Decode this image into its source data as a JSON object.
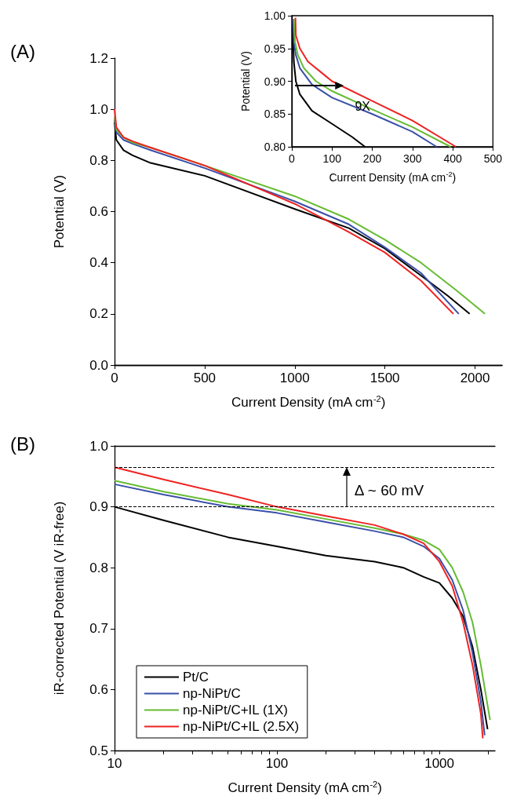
{
  "chart_data": [
    {
      "type": "line",
      "title": "(A)",
      "xlabel": "Current Density (mA cm$^{-2}$)",
      "ylabel": "Potential (V)",
      "xlim": [
        0,
        2150
      ],
      "xticks": [
        0,
        500,
        1000,
        1500,
        2000
      ],
      "ylim": [
        0,
        1.2
      ],
      "yticks": [
        {
          "value": 0,
          "label": "0.0"
        },
        0.2,
        0.4,
        0.6,
        0.8,
        {
          "value": 1,
          "label": "1.0"
        },
        1.2
      ],
      "series": [
        {
          "color": "#000000",
          "x": [
            0,
            10,
            50,
            100,
            200,
            500,
            1000,
            1300,
            1500,
            1700,
            1850,
            1970
          ],
          "values": [
            0.95,
            0.88,
            0.84,
            0.82,
            0.79,
            0.74,
            0.61,
            0.535,
            0.455,
            0.35,
            0.27,
            0.2
          ]
        },
        {
          "color": "#3a4fa8",
          "x": [
            0,
            10,
            50,
            100,
            200,
            500,
            1000,
            1300,
            1500,
            1700,
            1910
          ],
          "values": [
            0.96,
            0.91,
            0.88,
            0.865,
            0.84,
            0.77,
            0.64,
            0.55,
            0.46,
            0.36,
            0.2
          ]
        },
        {
          "color": "#66bb33",
          "x": [
            0,
            10,
            50,
            100,
            200,
            500,
            1000,
            1300,
            1500,
            1700,
            1900,
            2055
          ],
          "values": [
            0.97,
            0.92,
            0.89,
            0.87,
            0.85,
            0.78,
            0.66,
            0.57,
            0.49,
            0.4,
            0.29,
            0.2
          ]
        },
        {
          "color": "#ee2222",
          "x": [
            0,
            10,
            50,
            100,
            200,
            500,
            1000,
            1300,
            1500,
            1700,
            1880
          ],
          "values": [
            1.0,
            0.93,
            0.89,
            0.875,
            0.85,
            0.78,
            0.63,
            0.52,
            0.44,
            0.33,
            0.2
          ]
        }
      ]
    },
    {
      "type": "line",
      "xlabel": "Current Density (mA cm$^{-2}$)",
      "ylabel": "Potential (V)",
      "xlim": [
        0,
        500
      ],
      "xticks": [
        0,
        100,
        200,
        300,
        400,
        500
      ],
      "ylim": [
        0.8,
        1.0
      ],
      "yticks": [
        {
          "value": 0.8,
          "label": "0.80"
        },
        0.85,
        {
          "value": 0.9,
          "label": "0.90"
        },
        0.95,
        {
          "value": 1,
          "label": "1.00"
        }
      ],
      "annotations": [
        {
          "text": "9X",
          "x": 176,
          "y": 0.862
        }
      ],
      "series": [
        {
          "color": "#000000",
          "x": [
            2,
            5,
            10,
            20,
            50,
            100,
            150,
            182
          ],
          "values": [
            0.995,
            0.93,
            0.9,
            0.88,
            0.855,
            0.835,
            0.815,
            0.8
          ]
        },
        {
          "color": "#3a4fa8",
          "x": [
            3,
            5,
            10,
            20,
            50,
            100,
            200,
            300,
            360
          ],
          "values": [
            0.995,
            0.96,
            0.94,
            0.92,
            0.895,
            0.875,
            0.85,
            0.823,
            0.8
          ]
        },
        {
          "color": "#66bb33",
          "x": [
            5,
            8,
            15,
            30,
            60,
            100,
            200,
            300,
            395
          ],
          "values": [
            0.995,
            0.96,
            0.94,
            0.92,
            0.9,
            0.885,
            0.857,
            0.83,
            0.8
          ]
        },
        {
          "color": "#ee2222",
          "x": [
            9,
            10,
            20,
            40,
            80,
            100,
            200,
            300,
            408
          ],
          "values": [
            0.997,
            0.97,
            0.95,
            0.93,
            0.91,
            0.9,
            0.87,
            0.84,
            0.8
          ]
        }
      ]
    },
    {
      "type": "line",
      "title": "(B)",
      "xlabel": "Current Density (mA cm$^{-2}$)",
      "ylabel": "iR-corrected Potential (V iR-free)",
      "log": "x",
      "legend": "bottom left",
      "xlim": [
        10,
        2200
      ],
      "xticks": [
        10,
        {
          "value": 20,
          "label": null
        },
        {
          "value": 30,
          "label": null
        },
        {
          "value": 40,
          "label": null
        },
        {
          "value": 50,
          "label": null
        },
        {
          "value": 60,
          "label": null
        },
        {
          "value": 70,
          "label": null
        },
        {
          "value": 80,
          "label": null
        },
        {
          "value": 90,
          "label": null
        },
        100,
        {
          "value": 200,
          "label": null
        },
        {
          "value": 300,
          "label": null
        },
        {
          "value": 400,
          "label": null
        },
        {
          "value": 500,
          "label": null
        },
        {
          "value": 600,
          "label": null
        },
        {
          "value": 700,
          "label": null
        },
        {
          "value": 800,
          "label": null
        },
        {
          "value": 900,
          "label": null
        },
        1000,
        {
          "value": 2000,
          "label": null
        }
      ],
      "ylim": [
        0.5,
        1.0
      ],
      "yticks": [
        0.5,
        0.6,
        0.7,
        0.8,
        0.9,
        {
          "value": 1,
          "label": "1.0"
        }
      ],
      "ref_lines": [
        {
          "axis": "y",
          "value": 0.965,
          "line_style": "dashed",
          "color": "#000000"
        },
        {
          "axis": "y",
          "value": 0.9,
          "line_style": "dashed",
          "color": "#000000"
        }
      ],
      "annotations": [
        "Δ ~ 60 mV"
      ],
      "series": [
        {
          "name": "Pt/C",
          "color": "#000000",
          "x": [
            10,
            20,
            50,
            100,
            200,
            400,
            600,
            800,
            1000,
            1200,
            1400,
            1600,
            1800,
            1980
          ],
          "values": [
            0.9,
            0.878,
            0.85,
            0.835,
            0.82,
            0.81,
            0.8,
            0.785,
            0.775,
            0.75,
            0.72,
            0.67,
            0.6,
            0.535
          ]
        },
        {
          "name": "np-NiPt/C",
          "color": "#3a4fa8",
          "x": [
            10,
            20,
            50,
            100,
            200,
            400,
            600,
            800,
            1000,
            1200,
            1400,
            1600,
            1800,
            1900
          ],
          "values": [
            0.937,
            0.92,
            0.9,
            0.89,
            0.875,
            0.86,
            0.85,
            0.835,
            0.815,
            0.78,
            0.73,
            0.66,
            0.58,
            0.525
          ]
        },
        {
          "name": "np-NiPt/C+IL (1X)",
          "color": "#66bb33",
          "x": [
            10,
            20,
            50,
            100,
            200,
            400,
            600,
            800,
            1000,
            1200,
            1400,
            1600,
            1800,
            2050
          ],
          "values": [
            0.943,
            0.925,
            0.905,
            0.895,
            0.88,
            0.865,
            0.855,
            0.845,
            0.83,
            0.8,
            0.76,
            0.71,
            0.64,
            0.55
          ]
        },
        {
          "name": "np-NiPt/C+IL (2.5X)",
          "color": "#ee2222",
          "x": [
            10,
            20,
            50,
            100,
            200,
            400,
            600,
            800,
            1000,
            1200,
            1400,
            1600,
            1800,
            1850
          ],
          "values": [
            0.965,
            0.945,
            0.92,
            0.9,
            0.885,
            0.87,
            0.855,
            0.84,
            0.81,
            0.77,
            0.71,
            0.64,
            0.56,
            0.52
          ]
        }
      ]
    }
  ]
}
